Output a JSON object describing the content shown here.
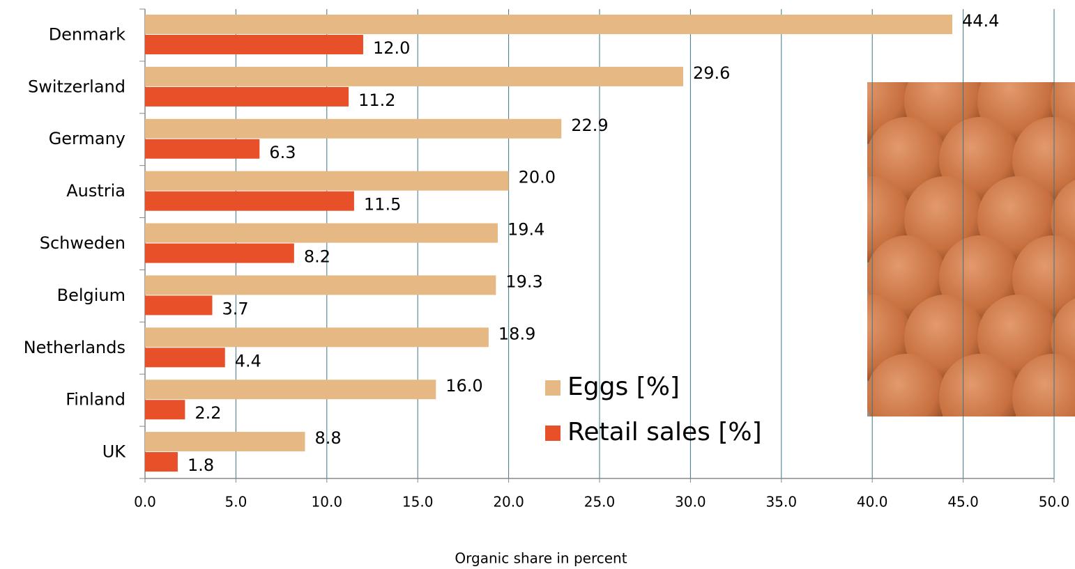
{
  "chart_data": {
    "type": "hbar",
    "x_label": "Organic share in  percent",
    "categories": [
      "Denmark",
      "Switzerland",
      "Germany",
      "Austria",
      "Schweden",
      "Belgium",
      "Netherlands",
      "Finland",
      "UK"
    ],
    "series": [
      {
        "name": "Eggs [%]",
        "color": "#e6b883",
        "values": [
          44.4,
          29.6,
          22.9,
          20.0,
          19.4,
          19.3,
          18.9,
          16.0,
          8.8
        ],
        "value_labels": [
          "44.4",
          "29.6",
          "22.9",
          "20.0",
          "19.4",
          "19.3",
          "18.9",
          "16.0",
          "8.8"
        ]
      },
      {
        "name": "Retail sales [%]",
        "color": "#e8502a",
        "values": [
          12.0,
          11.2,
          6.3,
          11.5,
          8.2,
          3.7,
          4.4,
          2.2,
          1.8
        ],
        "value_labels": [
          "12.0",
          "11.2",
          "6.3",
          "11.5",
          "8.2",
          "3.7",
          "4.4",
          "2.2",
          "1.8"
        ]
      }
    ],
    "xlim": [
      0,
      50
    ],
    "xticks": [
      {
        "value": 0,
        "label": "0.0"
      },
      {
        "value": 5,
        "label": "5.0"
      },
      {
        "value": 10,
        "label": "10.0"
      },
      {
        "value": 15,
        "label": "15.0"
      },
      {
        "value": 20,
        "label": "20.0"
      },
      {
        "value": 25,
        "label": "25.0"
      },
      {
        "value": 30,
        "label": "30.0"
      },
      {
        "value": 35,
        "label": "35.0"
      },
      {
        "value": 40,
        "label": "40.0"
      },
      {
        "value": 45,
        "label": "45.0"
      },
      {
        "value": 50,
        "label": "50.0"
      }
    ],
    "grid": true
  }
}
